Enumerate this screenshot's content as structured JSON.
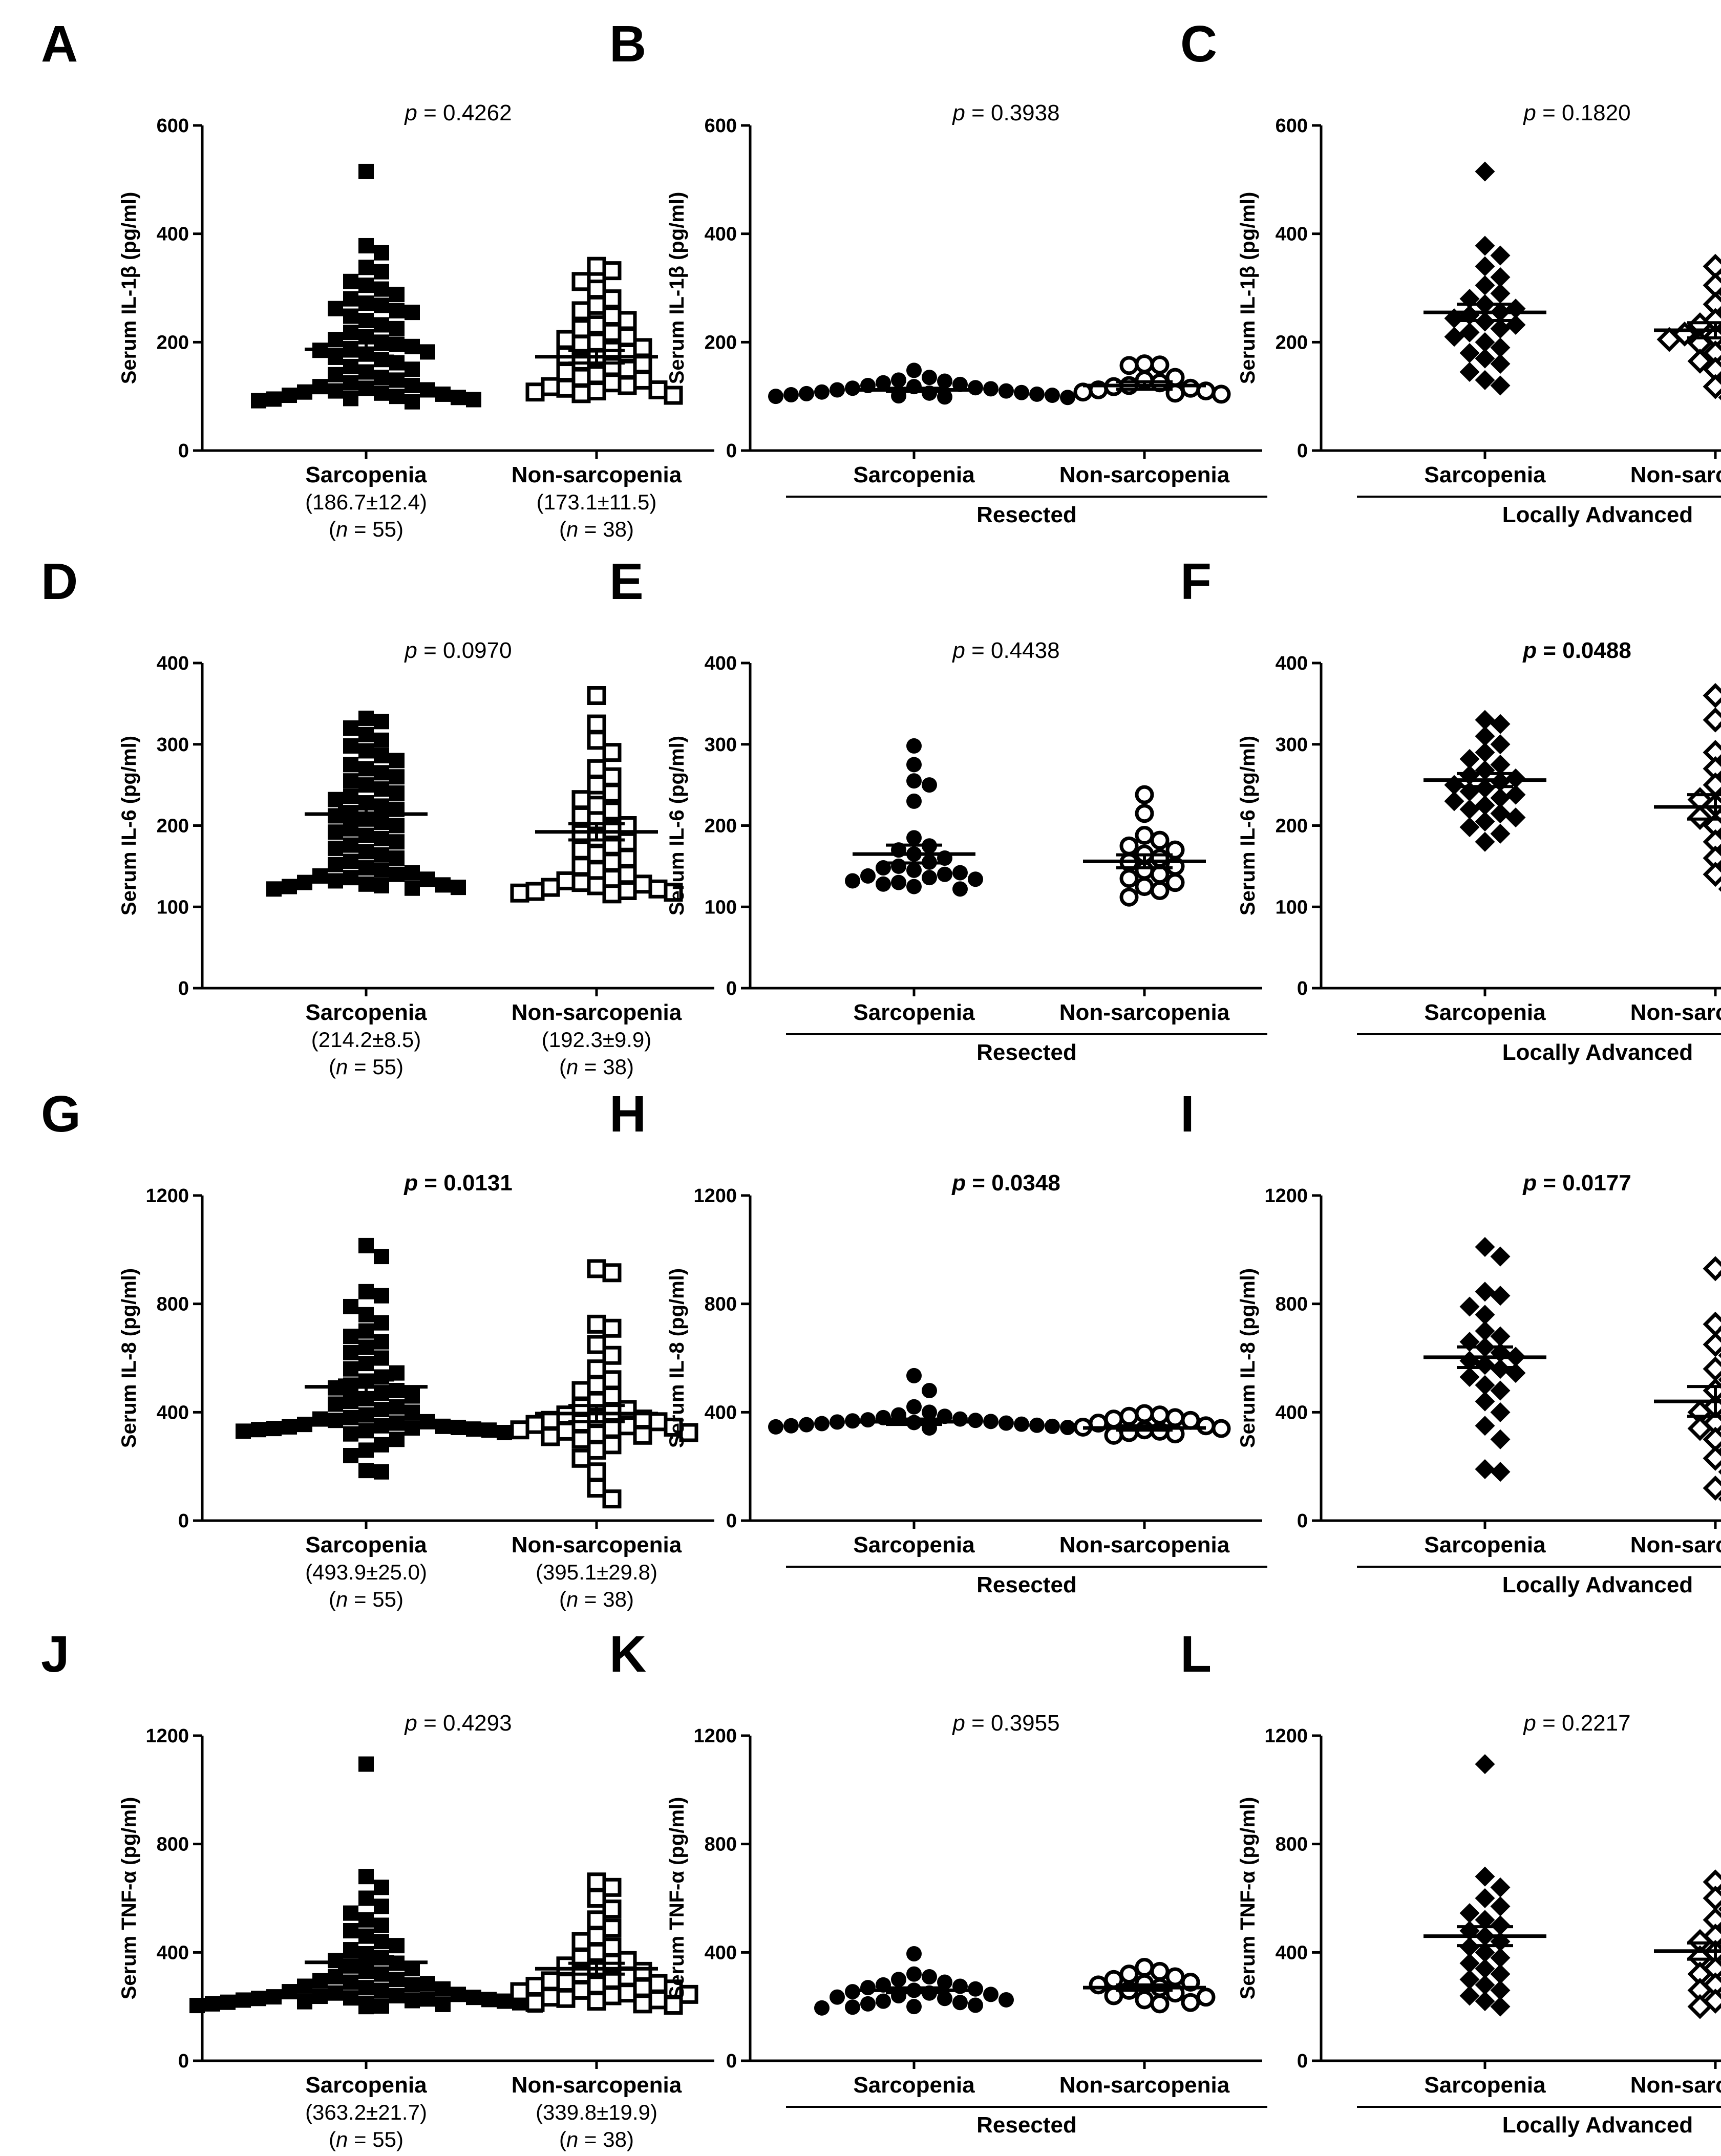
{
  "figure_style": {
    "mark_color": "#000000",
    "background": "#ffffff"
  },
  "chart_data": [
    {
      "panel": "A",
      "type": "scatter",
      "ylabel": "Serum IL-1β (pg/ml)",
      "yticks": [
        "0",
        "200",
        "400",
        "600"
      ],
      "ylim": [
        0,
        600
      ],
      "p_text": "p = 0.4262",
      "p_significant": false,
      "marker": "square",
      "categories": [
        {
          "name": "Sarcopenia",
          "filled": true,
          "mean": 186.7,
          "sem": 12.4,
          "stat_text": "(186.7±12.4)",
          "n_text": "(n = 55)"
        },
        {
          "name": "Non-sarcopenia",
          "filled": false,
          "mean": 173.1,
          "sem": 11.5,
          "stat_text": "(173.1±11.5)",
          "n_text": "(n = 38)"
        }
      ],
      "values": [
        [
          515,
          378,
          365,
          338,
          330,
          312,
          305,
          298,
          288,
          280,
          272,
          268,
          262,
          258,
          255,
          248,
          240,
          232,
          225,
          218,
          210,
          205,
          200,
          196,
          192,
          188,
          185,
          182,
          178,
          172,
          168,
          162,
          155,
          150,
          145,
          140,
          135,
          130,
          125,
          120,
          118,
          115,
          112,
          110,
          108,
          106,
          104,
          102,
          100,
          98,
          96,
          95,
          94,
          92,
          90
        ],
        [
          340,
          332,
          312,
          298,
          280,
          268,
          258,
          248,
          240,
          232,
          225,
          218,
          210,
          205,
          200,
          196,
          190,
          185,
          180,
          175,
          170,
          165,
          160,
          155,
          150,
          145,
          140,
          135,
          130,
          125,
          120,
          118,
          115,
          112,
          110,
          108,
          105,
          102
        ]
      ]
    },
    {
      "panel": "B",
      "type": "scatter",
      "ylabel": "Serum IL-1β (pg/ml)",
      "yticks": [
        "0",
        "200",
        "400",
        "600"
      ],
      "ylim": [
        0,
        600
      ],
      "p_text": "p = 0.3938",
      "p_significant": false,
      "marker": "circle",
      "group_label": "Resected",
      "categories": [
        {
          "name": "Sarcopenia",
          "filled": true,
          "mean": 112,
          "sem": 3
        },
        {
          "name": "Non-sarcopenia",
          "filled": false,
          "mean": 120,
          "sem": 7
        }
      ],
      "values": [
        [
          148,
          135,
          130,
          128,
          125,
          122,
          120,
          118,
          116,
          115,
          114,
          112,
          110,
          108,
          107,
          106,
          105,
          104,
          103,
          102,
          101,
          100,
          99,
          98
        ],
        [
          160,
          158,
          157,
          135,
          130,
          125,
          120,
          118,
          115,
          112,
          110,
          108,
          106,
          104
        ]
      ]
    },
    {
      "panel": "C",
      "type": "scatter",
      "ylabel": "Serum IL-1β (pg/ml)",
      "yticks": [
        "0",
        "200",
        "400",
        "600"
      ],
      "ylim": [
        0,
        600
      ],
      "p_text": "p = 0.1820",
      "p_significant": false,
      "marker": "diamond",
      "group_label": "Locally Advanced",
      "categories": [
        {
          "name": "Sarcopenia",
          "filled": true,
          "mean": 255,
          "sem": 15
        },
        {
          "name": "Non-sarcopenia",
          "filled": false,
          "mean": 222,
          "sem": 14
        }
      ],
      "values": [
        [
          515,
          378,
          360,
          340,
          320,
          305,
          290,
          280,
          270,
          262,
          256,
          250,
          244,
          238,
          232,
          225,
          218,
          210,
          200,
          190,
          180,
          170,
          160,
          145,
          130,
          120
        ],
        [
          340,
          330,
          305,
          290,
          270,
          255,
          240,
          232,
          225,
          218,
          215,
          212,
          210,
          205,
          198,
          190,
          180,
          165,
          150,
          135,
          118,
          98
        ]
      ]
    },
    {
      "panel": "D",
      "type": "scatter",
      "ylabel": "Serum IL-6 (pg/ml)",
      "yticks": [
        "0",
        "100",
        "200",
        "300",
        "400"
      ],
      "ylim": [
        0,
        400
      ],
      "p_text": "p = 0.0970",
      "p_significant": false,
      "marker": "square",
      "categories": [
        {
          "name": "Sarcopenia",
          "filled": true,
          "mean": 214.2,
          "sem": 8.5,
          "stat_text": "(214.2±8.5)",
          "n_text": "(n = 55)"
        },
        {
          "name": "Non-sarcopenia",
          "filled": false,
          "mean": 192.3,
          "sem": 9.9,
          "stat_text": "(192.3±9.9)",
          "n_text": "(n = 38)"
        }
      ],
      "values": [
        [
          332,
          328,
          320,
          312,
          305,
          298,
          292,
          286,
          280,
          275,
          270,
          265,
          260,
          255,
          250,
          245,
          240,
          236,
          232,
          228,
          224,
          220,
          216,
          212,
          208,
          204,
          200,
          196,
          192,
          188,
          184,
          180,
          176,
          172,
          168,
          164,
          160,
          156,
          152,
          148,
          145,
          142,
          140,
          138,
          136,
          134,
          132,
          130,
          128,
          127,
          126,
          125,
          124,
          123,
          122
        ],
        [
          360,
          325,
          305,
          290,
          270,
          260,
          250,
          240,
          232,
          225,
          218,
          212,
          206,
          200,
          195,
          190,
          185,
          180,
          175,
          170,
          165,
          160,
          155,
          150,
          145,
          140,
          135,
          132,
          130,
          128,
          126,
          124,
          122,
          120,
          119,
          118,
          117,
          116
        ]
      ]
    },
    {
      "panel": "E",
      "type": "scatter",
      "ylabel": "Serum IL-6 (pg/ml)",
      "yticks": [
        "0",
        "100",
        "200",
        "300",
        "400"
      ],
      "ylim": [
        0,
        400
      ],
      "p_text": "p = 0.4438",
      "p_significant": false,
      "marker": "circle",
      "group_label": "Resected",
      "categories": [
        {
          "name": "Sarcopenia",
          "filled": true,
          "mean": 165,
          "sem": 11
        },
        {
          "name": "Non-sarcopenia",
          "filled": false,
          "mean": 156,
          "sem": 8
        }
      ],
      "values": [
        [
          298,
          275,
          255,
          250,
          230,
          185,
          175,
          170,
          165,
          160,
          155,
          150,
          148,
          145,
          142,
          140,
          138,
          136,
          134,
          132,
          130,
          128,
          125,
          122
        ],
        [
          238,
          215,
          188,
          182,
          175,
          170,
          165,
          160,
          155,
          150,
          145,
          140,
          135,
          130,
          125,
          120,
          112
        ]
      ]
    },
    {
      "panel": "F",
      "type": "scatter",
      "ylabel": "Serum IL-6 (pg/ml)",
      "yticks": [
        "0",
        "100",
        "200",
        "300",
        "400"
      ],
      "ylim": [
        0,
        400
      ],
      "p_text": "p = 0.0488",
      "p_significant": true,
      "marker": "diamond",
      "group_label": "Locally Advanced",
      "categories": [
        {
          "name": "Sarcopenia",
          "filled": true,
          "mean": 256,
          "sem": 8
        },
        {
          "name": "Non-sarcopenia",
          "filled": false,
          "mean": 223,
          "sem": 15
        }
      ],
      "values": [
        [
          330,
          325,
          310,
          300,
          290,
          282,
          275,
          268,
          262,
          258,
          254,
          250,
          246,
          242,
          238,
          234,
          230,
          225,
          220,
          215,
          210,
          205,
          198,
          190,
          180
        ],
        [
          360,
          330,
          325,
          290,
          280,
          270,
          260,
          250,
          240,
          232,
          225,
          218,
          210,
          200,
          190,
          180,
          170,
          160,
          150,
          140,
          122
        ]
      ]
    },
    {
      "panel": "G",
      "type": "scatter",
      "ylabel": "Serum IL-8 (pg/ml)",
      "yticks": [
        "0",
        "400",
        "800",
        "1200"
      ],
      "ylim": [
        0,
        1200
      ],
      "p_text": "p = 0.0131",
      "p_significant": true,
      "marker": "square",
      "categories": [
        {
          "name": "Sarcopenia",
          "filled": true,
          "mean": 493.9,
          "sem": 25.0,
          "stat_text": "(493.9±25.0)",
          "n_text": "(n = 55)"
        },
        {
          "name": "Non-sarcopenia",
          "filled": false,
          "mean": 395.1,
          "sem": 29.8,
          "stat_text": "(395.1±29.8)",
          "n_text": "(n = 38)"
        }
      ],
      "values": [
        [
          1015,
          975,
          845,
          830,
          790,
          760,
          730,
          700,
          680,
          660,
          640,
          620,
          600,
          580,
          560,
          545,
          530,
          515,
          500,
          490,
          480,
          470,
          460,
          450,
          440,
          430,
          420,
          410,
          400,
          390,
          380,
          375,
          370,
          365,
          360,
          355,
          350,
          348,
          346,
          344,
          342,
          340,
          338,
          336,
          334,
          332,
          330,
          325,
          320,
          300,
          280,
          260,
          240,
          185,
          180
        ],
        [
          930,
          915,
          725,
          710,
          650,
          610,
          560,
          520,
          500,
          480,
          460,
          440,
          420,
          410,
          400,
          390,
          380,
          375,
          370,
          365,
          360,
          355,
          350,
          345,
          340,
          335,
          330,
          325,
          320,
          315,
          310,
          300,
          280,
          260,
          230,
          180,
          120,
          80
        ]
      ]
    },
    {
      "panel": "H",
      "type": "scatter",
      "ylabel": "Serum IL-8 (pg/ml)",
      "yticks": [
        "0",
        "400",
        "800",
        "1200"
      ],
      "ylim": [
        0,
        1200
      ],
      "p_text": "p = 0.0348",
      "p_significant": true,
      "marker": "circle",
      "group_label": "Resected",
      "categories": [
        {
          "name": "Sarcopenia",
          "filled": true,
          "mean": 365,
          "sem": 10
        },
        {
          "name": "Non-sarcopenia",
          "filled": false,
          "mean": 342,
          "sem": 8
        }
      ],
      "values": [
        [
          535,
          480,
          420,
          400,
          390,
          385,
          380,
          375,
          372,
          370,
          368,
          366,
          364,
          362,
          360,
          358,
          356,
          354,
          352,
          350,
          348,
          346,
          344,
          342
        ],
        [
          395,
          390,
          385,
          380,
          375,
          370,
          360,
          350,
          345,
          340,
          335,
          330,
          325,
          320,
          315
        ]
      ]
    },
    {
      "panel": "I",
      "type": "scatter",
      "ylabel": "Serum IL-8 (pg/ml)",
      "yticks": [
        "0",
        "400",
        "800",
        "1200"
      ],
      "ylim": [
        0,
        1200
      ],
      "p_text": "p = 0.0177",
      "p_significant": true,
      "marker": "diamond",
      "group_label": "Locally Advanced",
      "categories": [
        {
          "name": "Sarcopenia",
          "filled": true,
          "mean": 603,
          "sem": 38
        },
        {
          "name": "Non-sarcopenia",
          "filled": false,
          "mean": 440,
          "sem": 55
        }
      ],
      "values": [
        [
          1010,
          975,
          845,
          830,
          790,
          760,
          700,
          680,
          660,
          640,
          620,
          605,
          590,
          575,
          560,
          545,
          530,
          500,
          480,
          440,
          400,
          350,
          300,
          190,
          180
        ],
        [
          930,
          915,
          725,
          710,
          650,
          610,
          560,
          520,
          480,
          440,
          420,
          400,
          380,
          360,
          340,
          300,
          260,
          230,
          180,
          120,
          80
        ]
      ]
    },
    {
      "panel": "J",
      "type": "scatter",
      "ylabel": "Serum TNF-α (pg/ml)",
      "yticks": [
        "0",
        "400",
        "800",
        "1200"
      ],
      "ylim": [
        0,
        1200
      ],
      "p_text": "p = 0.4293",
      "p_significant": false,
      "marker": "square",
      "categories": [
        {
          "name": "Sarcopenia",
          "filled": true,
          "mean": 363.2,
          "sem": 21.7,
          "stat_text": "(363.2±21.7)",
          "n_text": "(n = 55)"
        },
        {
          "name": "Non-sarcopenia",
          "filled": false,
          "mean": 339.8,
          "sem": 19.9,
          "stat_text": "(339.8±19.9)",
          "n_text": "(n = 38)"
        }
      ],
      "values": [
        [
          1095,
          680,
          640,
          600,
          570,
          545,
          520,
          500,
          480,
          460,
          440,
          425,
          410,
          395,
          380,
          370,
          360,
          350,
          340,
          330,
          320,
          310,
          300,
          295,
          290,
          285,
          280,
          275,
          270,
          265,
          260,
          255,
          250,
          245,
          240,
          238,
          236,
          234,
          232,
          230,
          228,
          226,
          224,
          222,
          220,
          218,
          216,
          214,
          212,
          210,
          208,
          206,
          204,
          202,
          200
        ],
        [
          660,
          640,
          600,
          560,
          520,
          490,
          460,
          440,
          420,
          400,
          380,
          370,
          360,
          350,
          340,
          330,
          320,
          310,
          300,
          295,
          290,
          285,
          280,
          275,
          270,
          265,
          260,
          255,
          250,
          245,
          240,
          235,
          230,
          225,
          220,
          215,
          210,
          205
        ]
      ]
    },
    {
      "panel": "K",
      "type": "scatter",
      "ylabel": "Serum TNF-α (pg/ml)",
      "yticks": [
        "0",
        "400",
        "800",
        "1200"
      ],
      "ylim": [
        0,
        1200
      ],
      "p_text": "p = 0.3955",
      "p_significant": false,
      "marker": "circle",
      "group_label": "Resected",
      "categories": [
        {
          "name": "Sarcopenia",
          "filled": true,
          "mean": 260,
          "sem": 9
        },
        {
          "name": "Non-sarcopenia",
          "filled": false,
          "mean": 270,
          "sem": 10
        }
      ],
      "values": [
        [
          395,
          320,
          310,
          300,
          290,
          280,
          275,
          270,
          265,
          260,
          255,
          250,
          245,
          240,
          235,
          230,
          225,
          220,
          215,
          210,
          205,
          200,
          198,
          195
        ],
        [
          345,
          330,
          320,
          310,
          300,
          290,
          285,
          280,
          270,
          260,
          250,
          240,
          235,
          225,
          215,
          210
        ]
      ]
    },
    {
      "panel": "L",
      "type": "scatter",
      "ylabel": "Serum TNF-α (pg/ml)",
      "yticks": [
        "0",
        "400",
        "800",
        "1200"
      ],
      "ylim": [
        0,
        1200
      ],
      "p_text": "p = 0.2217",
      "p_significant": false,
      "marker": "diamond",
      "group_label": "Locally Advanced",
      "categories": [
        {
          "name": "Sarcopenia",
          "filled": true,
          "mean": 460,
          "sem": 35
        },
        {
          "name": "Non-sarcopenia",
          "filled": false,
          "mean": 405,
          "sem": 30
        }
      ],
      "values": [
        [
          1095,
          680,
          640,
          600,
          570,
          545,
          520,
          500,
          480,
          460,
          440,
          420,
          400,
          380,
          360,
          340,
          320,
          300,
          280,
          260,
          240,
          220,
          200
        ],
        [
          660,
          640,
          600,
          560,
          520,
          490,
          460,
          440,
          420,
          400,
          380,
          360,
          340,
          320,
          300,
          280,
          260,
          240,
          220,
          200
        ]
      ]
    }
  ]
}
